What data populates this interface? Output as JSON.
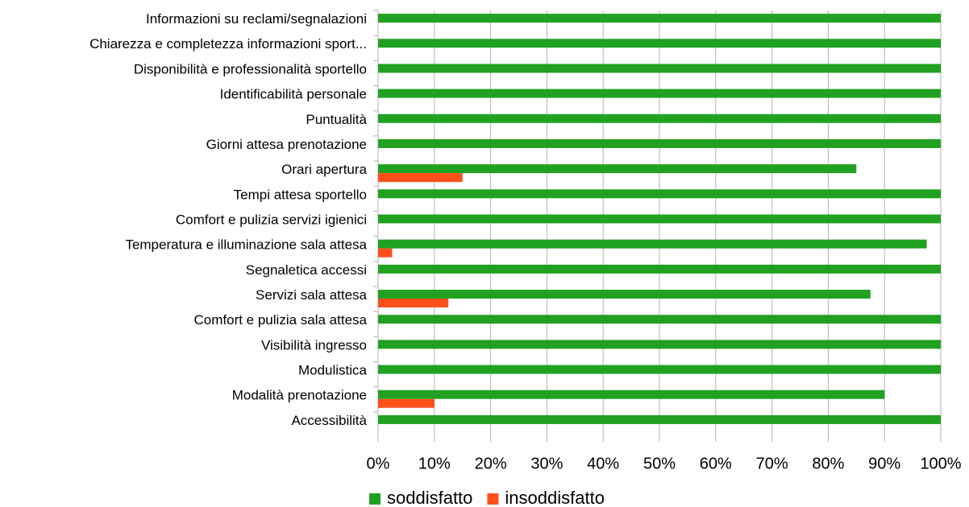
{
  "chart_data": {
    "type": "hbar",
    "categories": [
      "Informazioni su reclami/segnalazioni",
      "Chiarezza e completezza informazioni sport...",
      "Disponibilità e professionalità sportello",
      "Identificabilità personale",
      "Puntualità",
      "Giorni attesa prenotazione",
      "Orari apertura",
      "Tempi attesa sportello",
      "Comfort e pulizia servizi igienici",
      "Temperatura e illuminazione sala attesa",
      "Segnaletica accessi",
      "Servizi sala attesa",
      "Comfort e pulizia sala attesa",
      "Visibilità ingresso",
      "Modulistica",
      "Modalità prenotazione",
      "Accessibilità"
    ],
    "series": [
      {
        "name": "soddisfatto",
        "color": "#21a121",
        "values": [
          100,
          100,
          100,
          100,
          100,
          100,
          85,
          100,
          100,
          97.5,
          100,
          87.5,
          100,
          100,
          100,
          90,
          100
        ]
      },
      {
        "name": "insoddisfatto",
        "color": "#ff4f1a",
        "values": [
          0,
          0,
          0,
          0,
          0,
          0,
          15,
          0,
          0,
          2.5,
          0,
          12.5,
          0,
          0,
          0,
          10,
          0
        ]
      }
    ],
    "xlim": [
      0,
      100
    ],
    "xticks": [
      {
        "value": 0,
        "label": "0%"
      },
      {
        "value": 10,
        "label": "10%"
      },
      {
        "value": 20,
        "label": "20%"
      },
      {
        "value": 30,
        "label": "30%"
      },
      {
        "value": 40,
        "label": "40%"
      },
      {
        "value": 50,
        "label": "50%"
      },
      {
        "value": 60,
        "label": "60%"
      },
      {
        "value": 70,
        "label": "70%"
      },
      {
        "value": 80,
        "label": "80%"
      },
      {
        "value": 90,
        "label": "90%"
      },
      {
        "value": 100,
        "label": "100%"
      }
    ],
    "grid": true,
    "legend": "bottom"
  }
}
